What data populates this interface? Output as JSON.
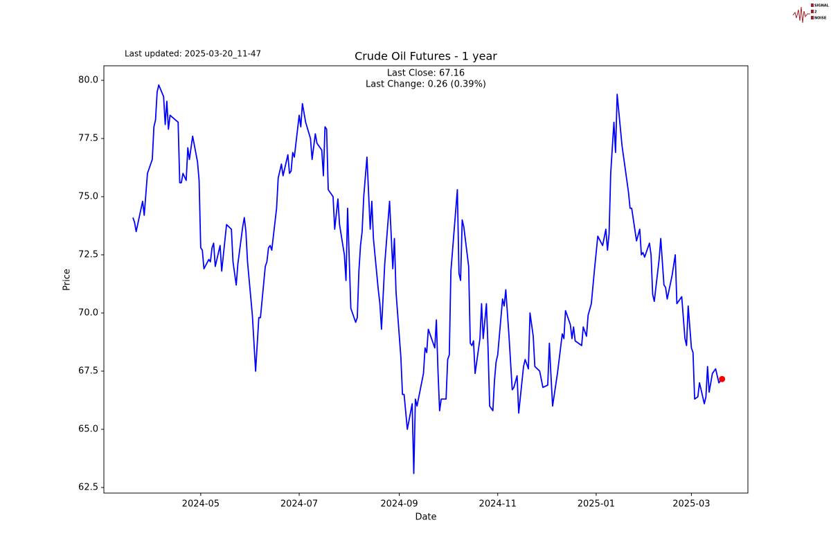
{
  "chart_data": {
    "type": "line",
    "title": "Crude Oil Futures - 1 year",
    "subtitle": "Last updated: 2025-03-20_11-47",
    "annotations": [
      "Last Close: 67.16",
      "Last Change: 0.26 (0.39%)"
    ],
    "logo": [
      "SIGNAL",
      "2",
      "NOISE"
    ],
    "x_label": "Date",
    "y_label": "Price",
    "color": "#0000ff",
    "last_point_color": "#ff0000",
    "xlim": [
      "2024-03-02",
      "2025-04-05"
    ],
    "xticks": [
      {
        "value": "2024-05-01",
        "label": "2024-05"
      },
      {
        "value": "2024-07-01",
        "label": "2024-07"
      },
      {
        "value": "2024-09-01",
        "label": "2024-09"
      },
      {
        "value": "2024-11-01",
        "label": "2024-11"
      },
      {
        "value": "2025-01-01",
        "label": "2025-01"
      },
      {
        "value": "2025-03-01",
        "label": "2025-03"
      }
    ],
    "ylim": [
      62.26,
      80.625
    ],
    "yticks": [
      62.5,
      {
        "value": 65,
        "label": "65.0"
      },
      67.5,
      {
        "value": 70,
        "label": "70.0"
      },
      72.5,
      {
        "value": 75,
        "label": "75.0"
      },
      77.5,
      {
        "value": 80,
        "label": "80.0"
      }
    ],
    "x": [
      "2024-03-20",
      "2024-03-21",
      "2024-03-22",
      "2024-03-26",
      "2024-03-27",
      "2024-03-29",
      "2024-04-01",
      "2024-04-02",
      "2024-04-03",
      "2024-04-04",
      "2024-04-05",
      "2024-04-08",
      "2024-04-09",
      "2024-04-10",
      "2024-04-11",
      "2024-04-12",
      "2024-04-17",
      "2024-04-18",
      "2024-04-19",
      "2024-04-20",
      "2024-04-22",
      "2024-04-23",
      "2024-04-24",
      "2024-04-26",
      "2024-04-29",
      "2024-04-30",
      "2024-05-01",
      "2024-05-02",
      "2024-05-03",
      "2024-05-06",
      "2024-05-07",
      "2024-05-08",
      "2024-05-09",
      "2024-05-10",
      "2024-05-13",
      "2024-05-14",
      "2024-05-17",
      "2024-05-20",
      "2024-05-21",
      "2024-05-23",
      "2024-05-24",
      "2024-05-27",
      "2024-05-28",
      "2024-05-29",
      "2024-05-30",
      "2024-06-02",
      "2024-06-04",
      "2024-06-06",
      "2024-06-07",
      "2024-06-10",
      "2024-06-11",
      "2024-06-12",
      "2024-06-13",
      "2024-06-14",
      "2024-06-17",
      "2024-06-18",
      "2024-06-20",
      "2024-06-21",
      "2024-06-24",
      "2024-06-25",
      "2024-06-26",
      "2024-06-27",
      "2024-06-28",
      "2024-07-01",
      "2024-07-02",
      "2024-07-03",
      "2024-07-05",
      "2024-07-08",
      "2024-07-09",
      "2024-07-11",
      "2024-07-12",
      "2024-07-15",
      "2024-07-16",
      "2024-07-17",
      "2024-07-18",
      "2024-07-19",
      "2024-07-22",
      "2024-07-23",
      "2024-07-25",
      "2024-07-26",
      "2024-07-29",
      "2024-07-30",
      "2024-07-31",
      "2024-08-02",
      "2024-08-05",
      "2024-08-06",
      "2024-08-07",
      "2024-08-08",
      "2024-08-09",
      "2024-08-10",
      "2024-08-12",
      "2024-08-14",
      "2024-08-15",
      "2024-08-16",
      "2024-08-19",
      "2024-08-20",
      "2024-08-21",
      "2024-08-23",
      "2024-08-26",
      "2024-08-28",
      "2024-08-29",
      "2024-08-30",
      "2024-09-02",
      "2024-09-03",
      "2024-09-04",
      "2024-09-06",
      "2024-09-09",
      "2024-09-10",
      "2024-09-11",
      "2024-09-12",
      "2024-09-16",
      "2024-09-17",
      "2024-09-18",
      "2024-09-19",
      "2024-09-23",
      "2024-09-24",
      "2024-09-25",
      "2024-09-26",
      "2024-09-27",
      "2024-09-30",
      "2024-10-01",
      "2024-10-02",
      "2024-10-03",
      "2024-10-07",
      "2024-10-08",
      "2024-10-09",
      "2024-10-10",
      "2024-10-11",
      "2024-10-14",
      "2024-10-15",
      "2024-10-16",
      "2024-10-17",
      "2024-10-18",
      "2024-10-21",
      "2024-10-22",
      "2024-10-23",
      "2024-10-25",
      "2024-10-26",
      "2024-10-27",
      "2024-10-29",
      "2024-10-30",
      "2024-10-31",
      "2024-11-01",
      "2024-11-04",
      "2024-11-05",
      "2024-11-06",
      "2024-11-08",
      "2024-11-10",
      "2024-11-11",
      "2024-11-13",
      "2024-11-14",
      "2024-11-17",
      "2024-11-18",
      "2024-11-20",
      "2024-11-21",
      "2024-11-23",
      "2024-11-24",
      "2024-11-27",
      "2024-11-29",
      "2024-12-02",
      "2024-12-03",
      "2024-12-04",
      "2024-12-05",
      "2024-12-08",
      "2024-12-11",
      "2024-12-12",
      "2024-12-13",
      "2024-12-16",
      "2024-12-17",
      "2024-12-18",
      "2024-12-19",
      "2024-12-23",
      "2024-12-24",
      "2024-12-26",
      "2024-12-27",
      "2024-12-29",
      "2024-12-31",
      "2025-01-02",
      "2025-01-05",
      "2025-01-07",
      "2025-01-08",
      "2025-01-09",
      "2025-01-10",
      "2025-01-12",
      "2025-01-13",
      "2025-01-14",
      "2025-01-17",
      "2025-01-21",
      "2025-01-22",
      "2025-01-23",
      "2025-01-26",
      "2025-01-28",
      "2025-01-29",
      "2025-01-30",
      "2025-01-31",
      "2025-02-03",
      "2025-02-04",
      "2025-02-05",
      "2025-02-06",
      "2025-02-09",
      "2025-02-10",
      "2025-02-12",
      "2025-02-13",
      "2025-02-14",
      "2025-02-17",
      "2025-02-19",
      "2025-02-20",
      "2025-02-23",
      "2025-02-25",
      "2025-02-26",
      "2025-02-27",
      "2025-03-01",
      "2025-03-02",
      "2025-03-03",
      "2025-03-05",
      "2025-03-06",
      "2025-03-09",
      "2025-03-10",
      "2025-03-11",
      "2025-03-12",
      "2025-03-13",
      "2025-03-14",
      "2025-03-16",
      "2025-03-18",
      "2025-03-20"
    ],
    "values": [
      74.1,
      73.9,
      73.5,
      74.8,
      74.2,
      76.0,
      76.6,
      78.0,
      78.3,
      79.5,
      79.8,
      79.3,
      78.1,
      79.1,
      77.9,
      78.5,
      78.2,
      75.6,
      75.6,
      76.0,
      75.7,
      77.1,
      76.6,
      77.6,
      76.5,
      75.7,
      72.8,
      72.7,
      71.9,
      72.3,
      72.2,
      72.8,
      73.0,
      72.0,
      72.9,
      71.8,
      73.8,
      73.6,
      72.2,
      71.2,
      72.1,
      73.7,
      74.1,
      73.5,
      72.2,
      69.9,
      67.5,
      69.8,
      69.8,
      72.0,
      72.2,
      72.8,
      72.9,
      72.7,
      74.5,
      75.8,
      76.4,
      75.9,
      76.8,
      76.0,
      76.1,
      76.9,
      76.7,
      78.5,
      78.0,
      79.0,
      78.2,
      77.5,
      76.6,
      77.7,
      77.3,
      77.0,
      75.9,
      78.0,
      77.9,
      75.3,
      75.0,
      73.6,
      74.9,
      73.8,
      72.5,
      71.4,
      74.5,
      70.2,
      69.6,
      69.8,
      71.8,
      72.9,
      73.5,
      75.0,
      76.7,
      73.6,
      74.8,
      73.2,
      71.0,
      70.4,
      69.3,
      72.1,
      74.8,
      71.9,
      73.2,
      70.9,
      68.1,
      66.5,
      66.5,
      65.0,
      66.1,
      63.1,
      66.3,
      66.0,
      67.4,
      68.5,
      68.3,
      69.3,
      68.5,
      69.7,
      67.5,
      65.8,
      66.3,
      66.3,
      68.0,
      68.2,
      71.8,
      75.3,
      71.7,
      71.4,
      74.0,
      73.7,
      72.0,
      68.7,
      68.6,
      68.8,
      67.4,
      68.9,
      70.4,
      68.9,
      70.4,
      68.5,
      66.0,
      65.8,
      67.1,
      67.9,
      68.2,
      70.6,
      70.3,
      71.0,
      69.0,
      66.7,
      66.8,
      67.3,
      65.7,
      67.7,
      68.0,
      67.6,
      70.0,
      69.0,
      67.7,
      67.5,
      66.8,
      66.9,
      68.7,
      67.3,
      66.0,
      67.4,
      69.1,
      68.9,
      70.1,
      69.5,
      68.9,
      69.4,
      68.8,
      68.6,
      69.4,
      69.0,
      69.9,
      70.4,
      71.9,
      73.3,
      72.9,
      73.6,
      72.7,
      73.4,
      76.0,
      78.2,
      76.9,
      79.4,
      77.2,
      75.2,
      74.5,
      74.5,
      73.1,
      73.6,
      72.5,
      72.6,
      72.4,
      73.0,
      72.5,
      70.8,
      70.5,
      72.3,
      73.2,
      71.2,
      71.1,
      70.6,
      71.6,
      72.5,
      70.4,
      70.7,
      68.9,
      68.6,
      70.3,
      68.5,
      68.3,
      66.3,
      66.4,
      67.0,
      66.1,
      66.4,
      67.7,
      66.6,
      67.0,
      67.4,
      67.6,
      67.0,
      67.16
    ]
  }
}
